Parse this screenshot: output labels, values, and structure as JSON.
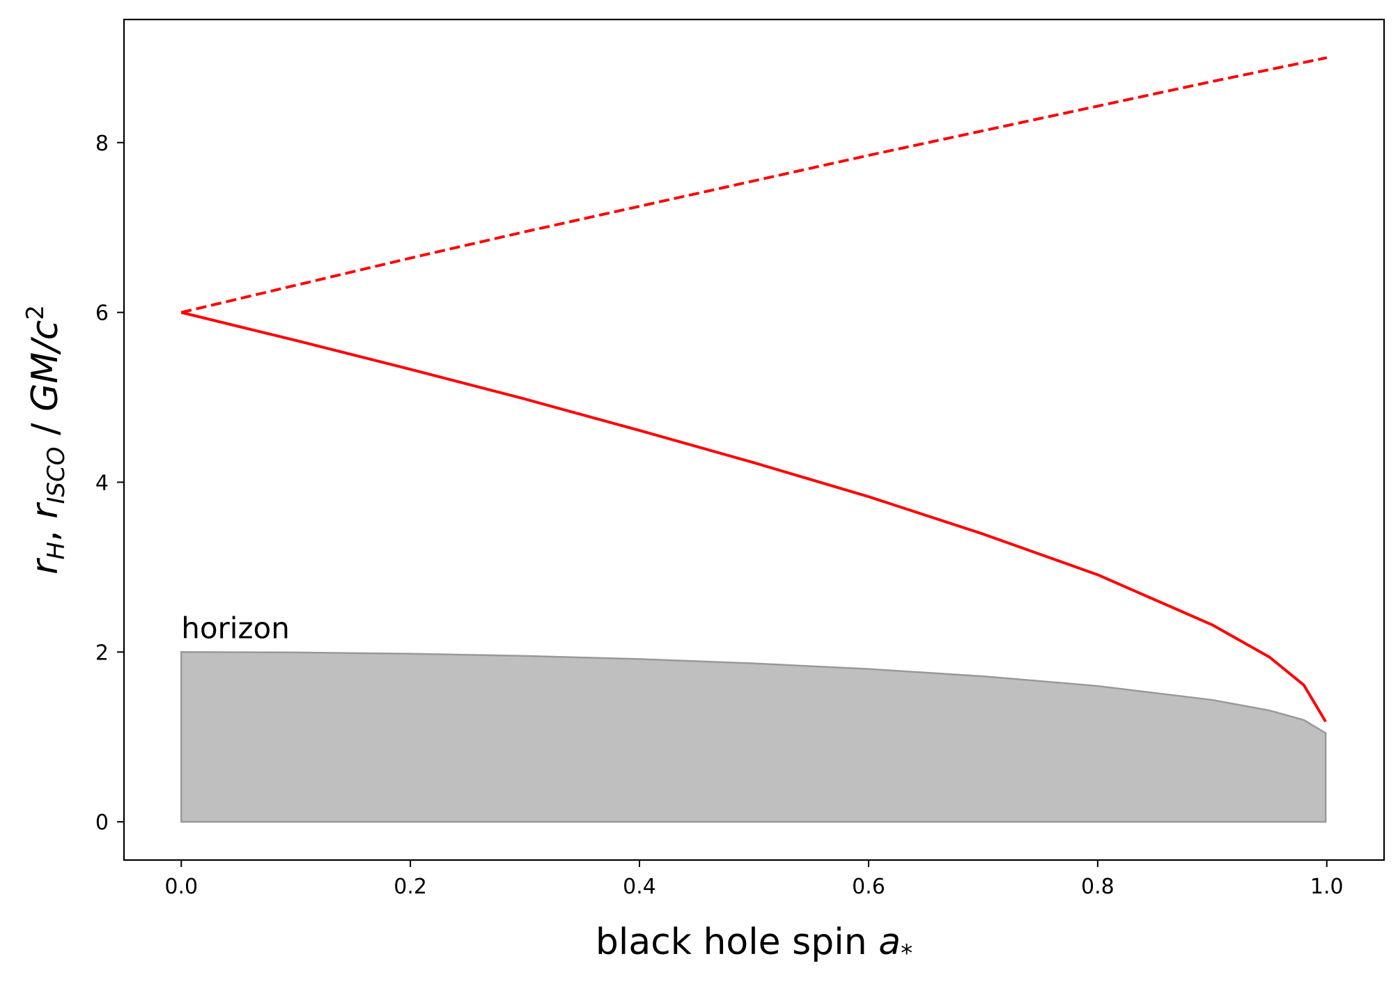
{
  "chart_data": {
    "type": "line",
    "xlabel": {
      "main": "black hole spin ",
      "var": "a",
      "sub": "*"
    },
    "ylabel": {
      "r1": "r",
      "s1": "H",
      "sep": ", ",
      "r2": "r",
      "s2": "ISCO",
      "slash": " / ",
      "unit": "GM/c",
      "sup": "2"
    },
    "xlim": [
      -0.05,
      1.05
    ],
    "ylim": [
      -0.45,
      9.45
    ],
    "xticks": [
      0.0,
      0.2,
      0.4,
      0.6,
      0.8,
      1.0
    ],
    "xtick_labels": [
      "0.0",
      "0.2",
      "0.4",
      "0.6",
      "0.8",
      "1.0"
    ],
    "yticks": [
      0,
      2,
      4,
      6,
      8
    ],
    "ytick_labels": [
      "0",
      "2",
      "4",
      "6",
      "8"
    ],
    "grid": false,
    "series": [
      {
        "style": "dashed",
        "color": "#ff0000",
        "x": [
          0.0,
          0.1,
          0.2,
          0.3,
          0.4,
          0.5,
          0.6,
          0.7,
          0.8,
          0.9,
          1.0
        ],
        "y": [
          6.0,
          6.32,
          6.64,
          6.95,
          7.25,
          7.55,
          7.85,
          8.14,
          8.43,
          8.72,
          9.0
        ]
      },
      {
        "style": "solid",
        "color": "#ff0000",
        "x": [
          0.0,
          0.1,
          0.2,
          0.3,
          0.4,
          0.5,
          0.6,
          0.7,
          0.8,
          0.9,
          0.95,
          0.98,
          0.999
        ],
        "y": [
          6.0,
          5.67,
          5.33,
          4.98,
          4.61,
          4.23,
          3.83,
          3.39,
          2.91,
          2.32,
          1.94,
          1.61,
          1.18
        ]
      }
    ],
    "fill": {
      "label": "horizon",
      "color": "#bfbfbf",
      "edge_color": "#999999",
      "x": [
        0.0,
        0.1,
        0.2,
        0.3,
        0.4,
        0.5,
        0.6,
        0.7,
        0.8,
        0.9,
        0.95,
        0.98,
        0.999
      ],
      "y": [
        2.0,
        1.995,
        1.98,
        1.954,
        1.917,
        1.866,
        1.8,
        1.714,
        1.6,
        1.436,
        1.312,
        1.199,
        1.045
      ]
    }
  }
}
